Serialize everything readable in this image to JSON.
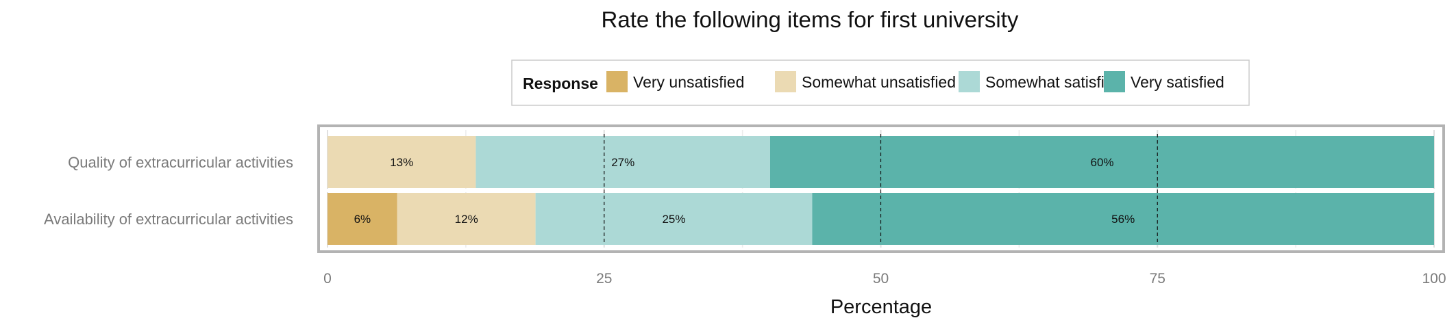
{
  "chart_data": {
    "type": "bar",
    "orientation": "horizontal",
    "stacked": true,
    "title": "Rate the following items for first university",
    "xlabel": "Percentage",
    "ylabel": "",
    "xlim": [
      0,
      100
    ],
    "xticks": [
      0,
      25,
      50,
      75,
      100
    ],
    "xtick_labels": [
      "0",
      "25",
      "50",
      "75",
      "100"
    ],
    "grid": true,
    "legend": {
      "title": "Response",
      "position": "top"
    },
    "categories": [
      "Quality of extracurricular activities",
      "Availability of extracurricular activities"
    ],
    "series": [
      {
        "name": "Very unsatisfied",
        "color": "#d9b365",
        "values": [
          0,
          6.3
        ],
        "labels": [
          "",
          "6%"
        ]
      },
      {
        "name": "Somewhat unsatisfied",
        "color": "#ebdab3",
        "values": [
          13.4,
          12.5
        ],
        "labels": [
          "13%",
          "12%"
        ]
      },
      {
        "name": "Somewhat satisfied",
        "color": "#acd9d6",
        "values": [
          26.6,
          25.0
        ],
        "labels": [
          "27%",
          "25%"
        ]
      },
      {
        "name": "Very satisfied",
        "color": "#5bb3aa",
        "values": [
          60.0,
          56.2
        ],
        "labels": [
          "60%",
          "56%"
        ]
      }
    ]
  }
}
